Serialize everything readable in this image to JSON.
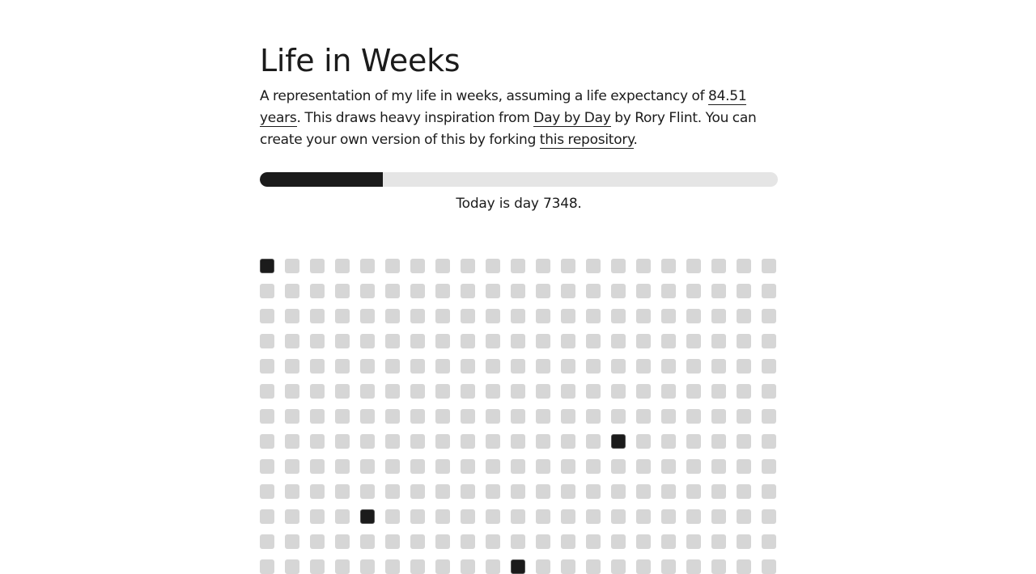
{
  "page": {
    "title": "Life in Weeks",
    "intro": {
      "text_before": "A representation of my life in weeks, assuming a life expectancy of ",
      "link_expectancy": "84.51 years",
      "text_middle": ". This draws heavy inspiration from ",
      "link_inspiration": "Day by Day",
      "text_after_inspiration": " by Rory Flint. You can create your own version of this by forking ",
      "link_repository": "this repository",
      "text_end": "."
    },
    "progress": {
      "fraction": 0.238
    },
    "today_text": "Today is day 7348."
  },
  "weeks_grid": {
    "columns": 21,
    "rows": 13,
    "filled": [
      [
        0,
        0
      ],
      [
        7,
        14
      ],
      [
        10,
        4
      ],
      [
        12,
        10
      ]
    ],
    "colors": {
      "empty": "#d6d6d6",
      "filled": "#1b1b1b"
    }
  }
}
